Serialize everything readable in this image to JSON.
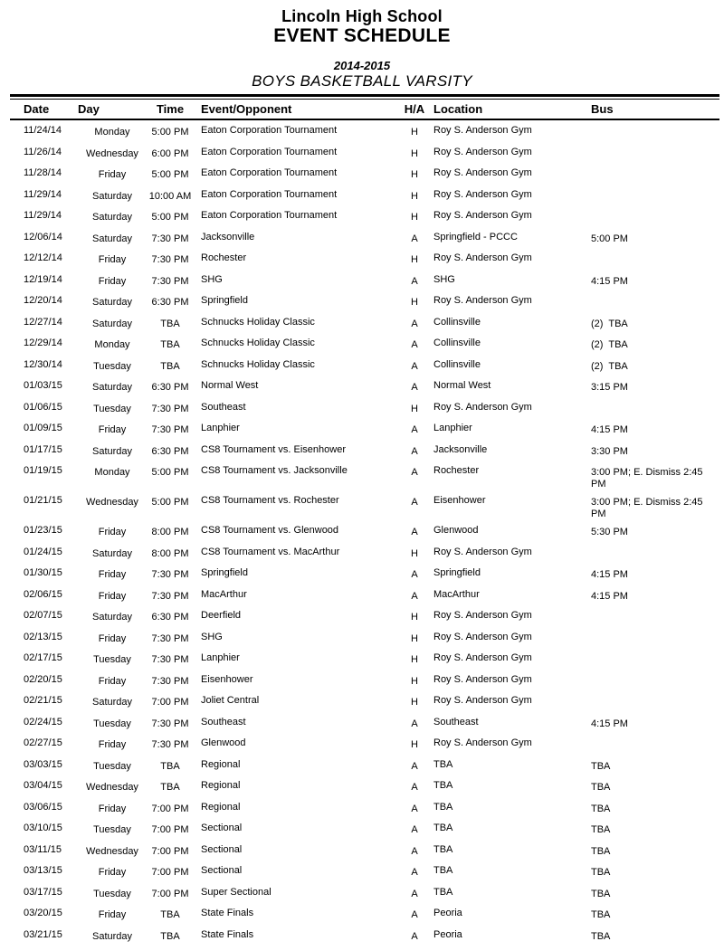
{
  "header": {
    "school": "Lincoln High School",
    "title": "EVENT SCHEDULE",
    "season": "2014-2015",
    "team": "BOYS BASKETBALL VARSITY"
  },
  "table": {
    "columns": [
      "Date",
      "Day",
      "Time",
      "Event/Opponent",
      "H/A",
      "Location",
      "Bus"
    ],
    "rows": [
      {
        "date": "11/24/14",
        "day": "Monday",
        "time": "5:00 PM",
        "event": "Eaton Corporation Tournament",
        "ha": "H",
        "location": "Roy S. Anderson Gym",
        "bus": ""
      },
      {
        "date": "11/26/14",
        "day": "Wednesday",
        "time": "6:00 PM",
        "event": "Eaton Corporation Tournament",
        "ha": "H",
        "location": "Roy S. Anderson Gym",
        "bus": ""
      },
      {
        "date": "11/28/14",
        "day": "Friday",
        "time": "5:00 PM",
        "event": "Eaton Corporation Tournament",
        "ha": "H",
        "location": "Roy S. Anderson Gym",
        "bus": ""
      },
      {
        "date": "11/29/14",
        "day": "Saturday",
        "time": "10:00 AM",
        "event": "Eaton Corporation Tournament",
        "ha": "H",
        "location": "Roy S. Anderson Gym",
        "bus": ""
      },
      {
        "date": "11/29/14",
        "day": "Saturday",
        "time": "5:00 PM",
        "event": "Eaton Corporation Tournament",
        "ha": "H",
        "location": "Roy S. Anderson Gym",
        "bus": ""
      },
      {
        "date": "12/06/14",
        "day": "Saturday",
        "time": "7:30 PM",
        "event": "Jacksonville",
        "ha": "A",
        "location": "Springfield - PCCC",
        "bus": "5:00 PM"
      },
      {
        "date": "12/12/14",
        "day": "Friday",
        "time": "7:30 PM",
        "event": "Rochester",
        "ha": "H",
        "location": "Roy S. Anderson Gym",
        "bus": ""
      },
      {
        "date": "12/19/14",
        "day": "Friday",
        "time": "7:30 PM",
        "event": "SHG",
        "ha": "A",
        "location": "SHG",
        "bus": "4:15 PM"
      },
      {
        "date": "12/20/14",
        "day": "Saturday",
        "time": "6:30 PM",
        "event": "Springfield",
        "ha": "H",
        "location": "Roy S. Anderson Gym",
        "bus": ""
      },
      {
        "date": "12/27/14",
        "day": "Saturday",
        "time": "TBA",
        "event": "Schnucks Holiday Classic",
        "ha": "A",
        "location": "Collinsville",
        "bus": "(2)  TBA"
      },
      {
        "date": "12/29/14",
        "day": "Monday",
        "time": "TBA",
        "event": "Schnucks Holiday Classic",
        "ha": "A",
        "location": "Collinsville",
        "bus": "(2)  TBA"
      },
      {
        "date": "12/30/14",
        "day": "Tuesday",
        "time": "TBA",
        "event": "Schnucks Holiday Classic",
        "ha": "A",
        "location": "Collinsville",
        "bus": "(2)  TBA"
      },
      {
        "date": "01/03/15",
        "day": "Saturday",
        "time": "6:30 PM",
        "event": "Normal West",
        "ha": "A",
        "location": "Normal West",
        "bus": "3:15 PM"
      },
      {
        "date": "01/06/15",
        "day": "Tuesday",
        "time": "7:30 PM",
        "event": "Southeast",
        "ha": "H",
        "location": "Roy S. Anderson Gym",
        "bus": ""
      },
      {
        "date": "01/09/15",
        "day": "Friday",
        "time": "7:30 PM",
        "event": "Lanphier",
        "ha": "A",
        "location": "Lanphier",
        "bus": "4:15 PM"
      },
      {
        "date": "01/17/15",
        "day": "Saturday",
        "time": "6:30 PM",
        "event": "CS8 Tournament vs. Eisenhower",
        "ha": "A",
        "location": "Jacksonville",
        "bus": "3:30 PM"
      },
      {
        "date": "01/19/15",
        "day": "Monday",
        "time": "5:00 PM",
        "event": "CS8 Tournament vs. Jacksonville",
        "ha": "A",
        "location": "Rochester",
        "bus": "3:00 PM; E. Dismiss 2:45 PM"
      },
      {
        "date": "01/21/15",
        "day": "Wednesday",
        "time": "5:00 PM",
        "event": "CS8 Tournament vs. Rochester",
        "ha": "A",
        "location": "Eisenhower",
        "bus": "3:00 PM; E. Dismiss 2:45 PM"
      },
      {
        "date": "01/23/15",
        "day": "Friday",
        "time": "8:00 PM",
        "event": "CS8 Tournament vs. Glenwood",
        "ha": "A",
        "location": "Glenwood",
        "bus": "5:30 PM"
      },
      {
        "date": "01/24/15",
        "day": "Saturday",
        "time": "8:00 PM",
        "event": "CS8 Tournament vs. MacArthur",
        "ha": "H",
        "location": "Roy S. Anderson Gym",
        "bus": ""
      },
      {
        "date": "01/30/15",
        "day": "Friday",
        "time": "7:30 PM",
        "event": "Springfield",
        "ha": "A",
        "location": "Springfield",
        "bus": "4:15 PM"
      },
      {
        "date": "02/06/15",
        "day": "Friday",
        "time": "7:30 PM",
        "event": "MacArthur",
        "ha": "A",
        "location": "MacArthur",
        "bus": "4:15 PM"
      },
      {
        "date": "02/07/15",
        "day": "Saturday",
        "time": "6:30 PM",
        "event": "Deerfield",
        "ha": "H",
        "location": "Roy S. Anderson Gym",
        "bus": ""
      },
      {
        "date": "02/13/15",
        "day": "Friday",
        "time": "7:30 PM",
        "event": "SHG",
        "ha": "H",
        "location": "Roy S. Anderson Gym",
        "bus": ""
      },
      {
        "date": "02/17/15",
        "day": "Tuesday",
        "time": "7:30 PM",
        "event": "Lanphier",
        "ha": "H",
        "location": "Roy S. Anderson Gym",
        "bus": ""
      },
      {
        "date": "02/20/15",
        "day": "Friday",
        "time": "7:30 PM",
        "event": "Eisenhower",
        "ha": "H",
        "location": "Roy S. Anderson Gym",
        "bus": ""
      },
      {
        "date": "02/21/15",
        "day": "Saturday",
        "time": "7:00 PM",
        "event": "Joliet Central",
        "ha": "H",
        "location": "Roy S. Anderson Gym",
        "bus": ""
      },
      {
        "date": "02/24/15",
        "day": "Tuesday",
        "time": "7:30 PM",
        "event": "Southeast",
        "ha": "A",
        "location": "Southeast",
        "bus": "4:15 PM"
      },
      {
        "date": "02/27/15",
        "day": "Friday",
        "time": "7:30 PM",
        "event": "Glenwood",
        "ha": "H",
        "location": "Roy S. Anderson Gym",
        "bus": ""
      },
      {
        "date": "03/03/15",
        "day": "Tuesday",
        "time": "TBA",
        "event": "Regional",
        "ha": "A",
        "location": "TBA",
        "bus": "TBA"
      },
      {
        "date": "03/04/15",
        "day": "Wednesday",
        "time": "TBA",
        "event": "Regional",
        "ha": "A",
        "location": "TBA",
        "bus": "TBA"
      },
      {
        "date": "03/06/15",
        "day": "Friday",
        "time": "7:00 PM",
        "event": "Regional",
        "ha": "A",
        "location": "TBA",
        "bus": "TBA"
      },
      {
        "date": "03/10/15",
        "day": "Tuesday",
        "time": "7:00 PM",
        "event": "Sectional",
        "ha": "A",
        "location": "TBA",
        "bus": "TBA"
      },
      {
        "date": "03/11/15",
        "day": "Wednesday",
        "time": "7:00 PM",
        "event": "Sectional",
        "ha": "A",
        "location": "TBA",
        "bus": "TBA"
      },
      {
        "date": "03/13/15",
        "day": "Friday",
        "time": "7:00 PM",
        "event": "Sectional",
        "ha": "A",
        "location": "TBA",
        "bus": "TBA"
      },
      {
        "date": "03/17/15",
        "day": "Tuesday",
        "time": "7:00 PM",
        "event": "Super Sectional",
        "ha": "A",
        "location": "TBA",
        "bus": "TBA"
      },
      {
        "date": "03/20/15",
        "day": "Friday",
        "time": "TBA",
        "event": "State Finals",
        "ha": "A",
        "location": "Peoria",
        "bus": "TBA"
      },
      {
        "date": "03/21/15",
        "day": "Saturday",
        "time": "TBA",
        "event": "State Finals",
        "ha": "A",
        "location": "Peoria",
        "bus": "TBA"
      }
    ]
  }
}
